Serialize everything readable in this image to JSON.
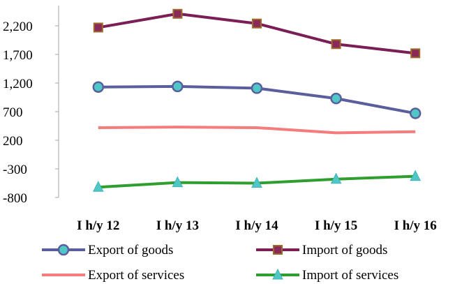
{
  "chart_data": {
    "type": "line",
    "categories": [
      "I h/y 12",
      "I h/y 13",
      "I h/y 14",
      "I h/y 15",
      "I h/y 16"
    ],
    "y_ticks": [
      "2,200",
      "1,700",
      "1,200",
      "700",
      "200",
      "-300",
      "-800"
    ],
    "ylim": [
      -800,
      2700
    ],
    "grid": false,
    "legend_position": "bottom",
    "series": [
      {
        "name": "Export of goods",
        "values": [
          1130,
          1140,
          1110,
          930,
          670
        ],
        "color": "#5b5e9c",
        "marker": "circle",
        "marker_color": "#4fc7c7"
      },
      {
        "name": "Import of goods",
        "values": [
          2170,
          2410,
          2240,
          1880,
          1720
        ],
        "color": "#7b1e55",
        "marker": "square",
        "marker_color": "#8b2a5a"
      },
      {
        "name": "Export of services",
        "values": [
          420,
          430,
          420,
          330,
          350
        ],
        "color": "#f47c7c",
        "marker": "none",
        "marker_color": ""
      },
      {
        "name": "Import of services",
        "values": [
          -620,
          -540,
          -550,
          -480,
          -430
        ],
        "color": "#2f9e2f",
        "marker": "triangle",
        "marker_color": "#4fc7c7"
      }
    ]
  }
}
